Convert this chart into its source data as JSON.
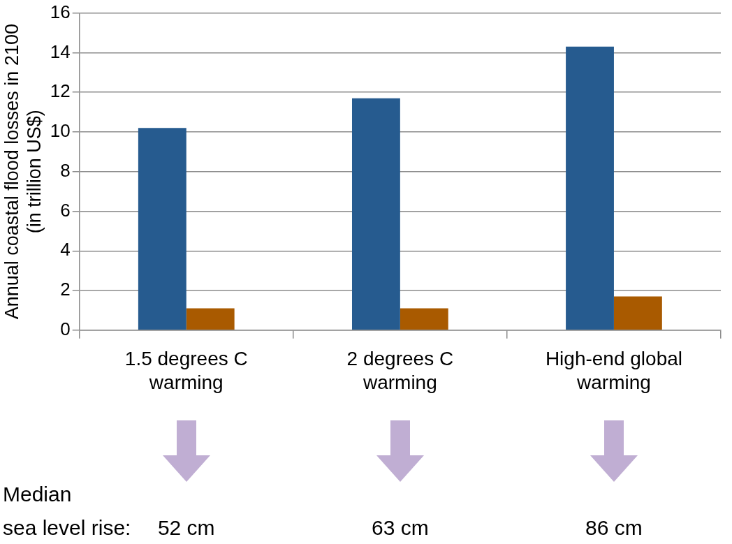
{
  "chart_data": {
    "type": "bar",
    "ylabel": "Annual coastal flood losses in 2100 (in trillion US$)",
    "categories": [
      "1.5 degrees C warming",
      "2 degrees C warming",
      "High-end global warming"
    ],
    "series": [
      {
        "color": "#265b8f",
        "values": [
          10.2,
          11.7,
          14.3
        ]
      },
      {
        "color": "#a95a00",
        "values": [
          1.1,
          1.1,
          1.7
        ]
      }
    ],
    "ylim": [
      0,
      16
    ],
    "yticks": [
      0,
      2,
      4,
      6,
      8,
      10,
      12,
      14,
      16
    ],
    "grid": "y",
    "legend": false,
    "annotations": [
      "Median",
      "sea level rise:",
      "52 cm",
      "63 cm",
      "86 cm"
    ]
  }
}
